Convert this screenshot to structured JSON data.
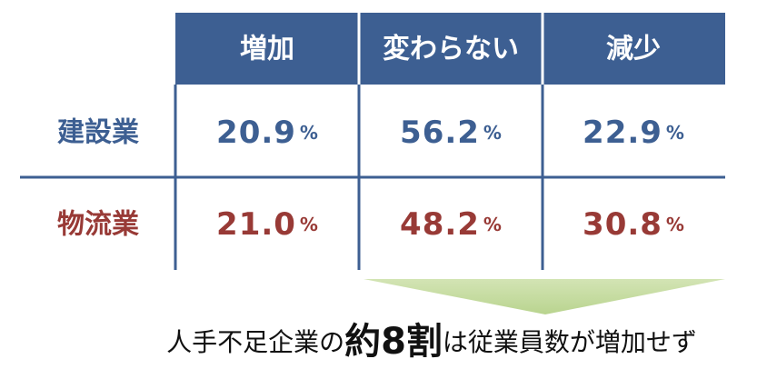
{
  "table": {
    "header": [
      "増加",
      "変わらない",
      "減少"
    ],
    "rows": [
      {
        "label": "建設業",
        "cells": [
          {
            "value": "20.9",
            "unit": "%"
          },
          {
            "value": "56.2",
            "unit": "%"
          },
          {
            "value": "22.9",
            "unit": "%"
          }
        ]
      },
      {
        "label": "物流業",
        "cells": [
          {
            "value": "21.0",
            "unit": "%"
          },
          {
            "value": "48.2",
            "unit": "%"
          },
          {
            "value": "30.8",
            "unit": "%"
          }
        ]
      }
    ]
  },
  "caption": [
    "人手不足企業の",
    "約8割",
    "は従業員数が増加せず"
  ]
}
